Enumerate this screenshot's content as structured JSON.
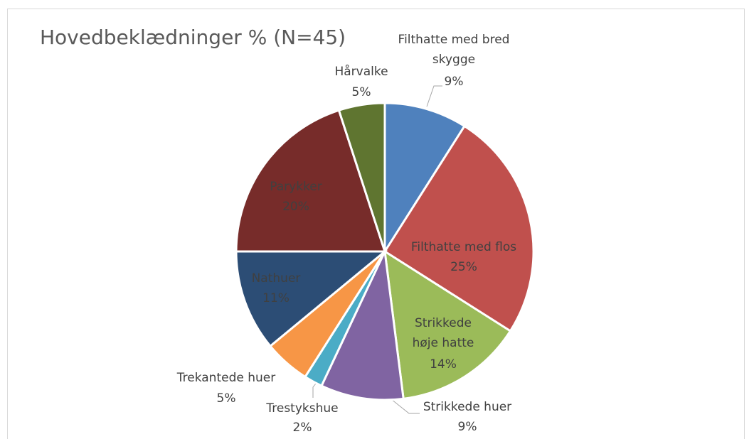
{
  "chart_data": {
    "type": "pie",
    "title": "Hovedbeklædninger % (N=45)",
    "categories": [
      "Filthatte med bred skygge",
      "Filthatte med flos",
      "Strikkede høje hatte",
      "Strikkede huer",
      "Trestykshue",
      "Trekantede huer",
      "Nathuer",
      "Parykker",
      "Hårvalke"
    ],
    "values": [
      9,
      25,
      14,
      9,
      2,
      5,
      11,
      20,
      5
    ],
    "value_labels": [
      "9%",
      "25%",
      "14%",
      "9%",
      "2%",
      "5%",
      "11%",
      "20%",
      "5%"
    ],
    "colors": [
      "#4f81bd",
      "#c0504d",
      "#9bbb59",
      "#8064a2",
      "#4bacc6",
      "#f79646",
      "#2c4d75",
      "#772c2a",
      "#5f7530"
    ]
  }
}
